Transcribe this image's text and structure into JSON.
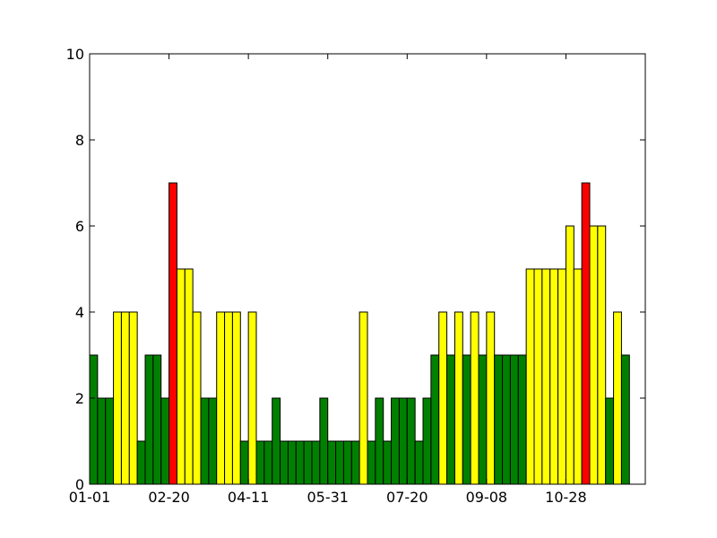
{
  "chart_data": {
    "type": "bar",
    "title": "",
    "xlabel": "",
    "ylabel": "",
    "x_axis": {
      "start_date": "01-01",
      "bin_width_days": 5,
      "range_days": [
        0,
        350
      ],
      "ticks": [
        {
          "day": 0,
          "label": "01-01"
        },
        {
          "day": 50,
          "label": "02-20"
        },
        {
          "day": 100,
          "label": "04-11"
        },
        {
          "day": 150,
          "label": "05-31"
        },
        {
          "day": 200,
          "label": "07-20"
        },
        {
          "day": 250,
          "label": "09-08"
        },
        {
          "day": 300,
          "label": "10-28"
        }
      ]
    },
    "ylim": [
      0,
      10
    ],
    "y_ticks": [
      0,
      2,
      4,
      6,
      8,
      10
    ],
    "colors": {
      "low": "#008000",
      "medium": "#ffff00",
      "high": "#ff0000"
    },
    "thresholds": {
      "medium_min": 4,
      "high_min": 7
    },
    "values": [
      3,
      2,
      2,
      4,
      4,
      4,
      1,
      3,
      3,
      2,
      7,
      5,
      5,
      4,
      2,
      2,
      4,
      4,
      4,
      1,
      4,
      1,
      1,
      2,
      1,
      1,
      1,
      1,
      1,
      2,
      1,
      1,
      1,
      1,
      4,
      1,
      2,
      1,
      2,
      2,
      2,
      1,
      2,
      3,
      4,
      3,
      4,
      3,
      4,
      3,
      4,
      3,
      3,
      3,
      3,
      5,
      5,
      5,
      5,
      5,
      6,
      5,
      7,
      6,
      6,
      2,
      4,
      3
    ],
    "grid": false,
    "legend": "none"
  }
}
